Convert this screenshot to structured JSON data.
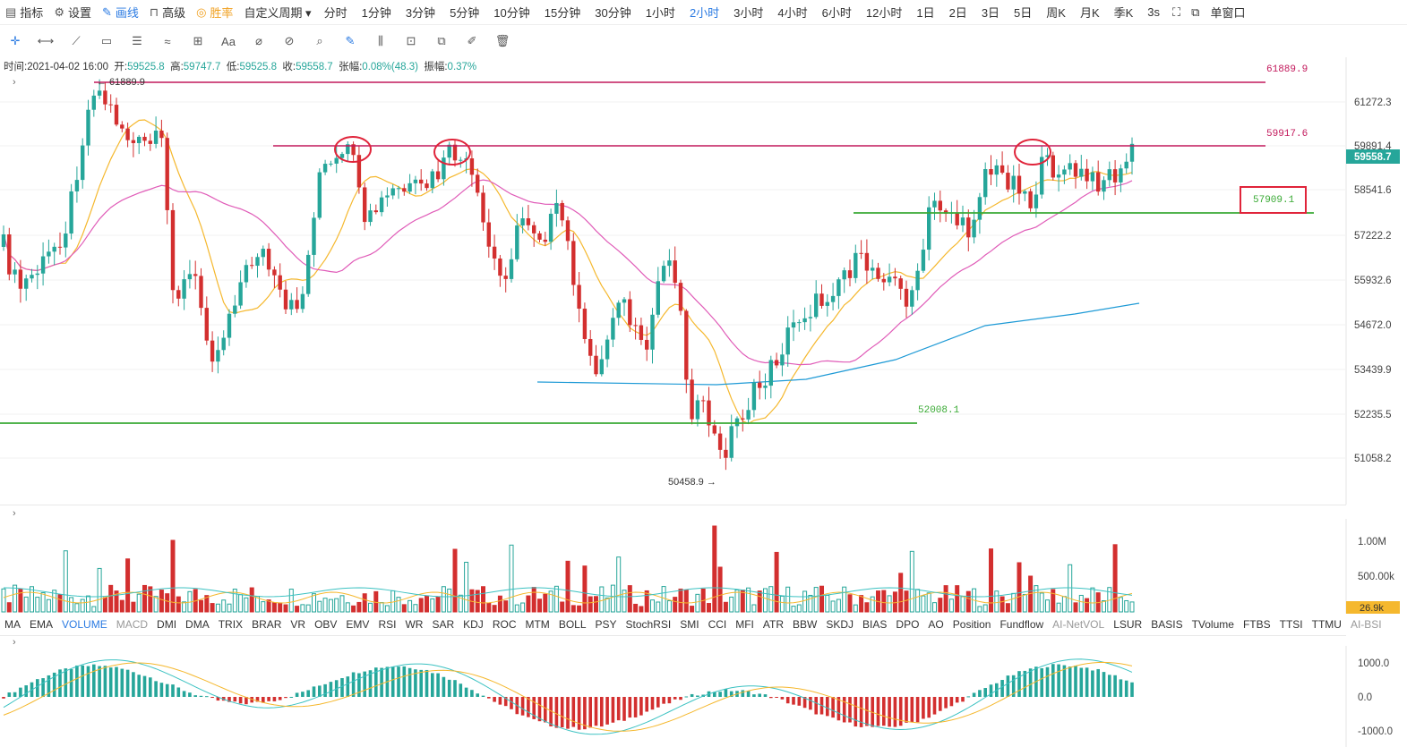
{
  "toolbar": {
    "items": [
      {
        "label": "指标",
        "icon": "bar-chart-icon",
        "glyph": "▤"
      },
      {
        "label": "设置",
        "icon": "gear-icon",
        "glyph": "⚙"
      },
      {
        "label": "画线",
        "icon": "pen-icon",
        "glyph": "✎",
        "active": true
      },
      {
        "label": "高级",
        "icon": "bag-icon",
        "glyph": "⊓"
      },
      {
        "label": "胜率",
        "icon": "target-icon",
        "glyph": "◎",
        "orange": true
      },
      {
        "label": "自定义周期 ▾"
      }
    ],
    "periods": [
      "分时",
      "1分钟",
      "3分钟",
      "5分钟",
      "10分钟",
      "15分钟",
      "30分钟",
      "1小时",
      "2小时",
      "3小时",
      "4小时",
      "6小时",
      "12小时",
      "1日",
      "2日",
      "3日",
      "5日",
      "周K",
      "月K",
      "季K",
      "3s"
    ],
    "active_period": "2小时",
    "right": {
      "fullscreen_icon": "fullscreen-icon",
      "popout_icon": "popout-icon",
      "window_label": "单窗口"
    }
  },
  "draw_tools": [
    "crosshair-icon",
    "horizontal-line-icon",
    "trend-line-icon",
    "rectangle-icon",
    "parallel-channel-icon",
    "fibonacci-icon",
    "measure-icon",
    "text-tool-icon",
    "eraser-icon",
    "magnet-icon",
    "ruler-icon",
    "brush-icon",
    "bars-icon",
    "lock-icon",
    "copy-icon",
    "edit-icon",
    "trash-icon"
  ],
  "ohlc": {
    "time_label": "时间:",
    "time": "2021-04-02 16:00",
    "open_label": "开:",
    "open": "59525.8",
    "high_label": "高:",
    "high": "59747.7",
    "low_label": "低:",
    "low": "59525.8",
    "close_label": "收:",
    "close": "59558.7",
    "change_label": "张幅:",
    "change": "0.08%(48.3)",
    "amplitude_label": "振幅:",
    "amplitude": "0.37%"
  },
  "price_axis": [
    "61272.3",
    "59891.4",
    "58541.6",
    "57222.2",
    "55932.6",
    "54672.0",
    "53439.9",
    "52235.5",
    "51058.2"
  ],
  "current_price": "59558.7",
  "annotations": {
    "top_line": "61889.9",
    "top_marker": "← 61889.9",
    "resistance": "59917.6",
    "support_box": "57909.1",
    "low_support": "52008.1",
    "low_marker": "50458.9 →"
  },
  "volume_axis": [
    "1.00M",
    "500.00k"
  ],
  "volume_current": "26.9k",
  "indicators": [
    {
      "label": "MA"
    },
    {
      "label": "EMA"
    },
    {
      "label": "VOLUME",
      "active": true
    },
    {
      "label": "MACD",
      "dim": true
    },
    {
      "label": "DMI"
    },
    {
      "label": "DMA"
    },
    {
      "label": "TRIX"
    },
    {
      "label": "BRAR"
    },
    {
      "label": "VR"
    },
    {
      "label": "OBV"
    },
    {
      "label": "EMV"
    },
    {
      "label": "RSI"
    },
    {
      "label": "WR"
    },
    {
      "label": "SAR"
    },
    {
      "label": "KDJ"
    },
    {
      "label": "ROC"
    },
    {
      "label": "MTM"
    },
    {
      "label": "BOLL"
    },
    {
      "label": "PSY"
    },
    {
      "label": "StochRSI"
    },
    {
      "label": "SMI"
    },
    {
      "label": "CCI"
    },
    {
      "label": "MFI"
    },
    {
      "label": "ATR"
    },
    {
      "label": "BBW"
    },
    {
      "label": "SKDJ"
    },
    {
      "label": "BIAS"
    },
    {
      "label": "DPO"
    },
    {
      "label": "AO"
    },
    {
      "label": "Position"
    },
    {
      "label": "Fundflow"
    },
    {
      "label": "AI-NetVOL",
      "dim": true
    },
    {
      "label": "LSUR"
    },
    {
      "label": "BASIS"
    },
    {
      "label": "TVolume"
    },
    {
      "label": "FTBS"
    },
    {
      "label": "TTSI"
    },
    {
      "label": "TTMU"
    },
    {
      "label": "AI-BSI",
      "dim": true
    }
  ],
  "macd_axis": [
    "1000.0",
    "0.0",
    "-1000.0"
  ],
  "colors": {
    "up": "#26a69a",
    "down": "#d32f2f",
    "ma_short": "#f5b82e",
    "ma_mid": "#e05cb8",
    "ma_long": "#1e9ad6",
    "resist": "#c2185b",
    "support": "#3aaa35",
    "accent": "#2a7ae2"
  }
}
